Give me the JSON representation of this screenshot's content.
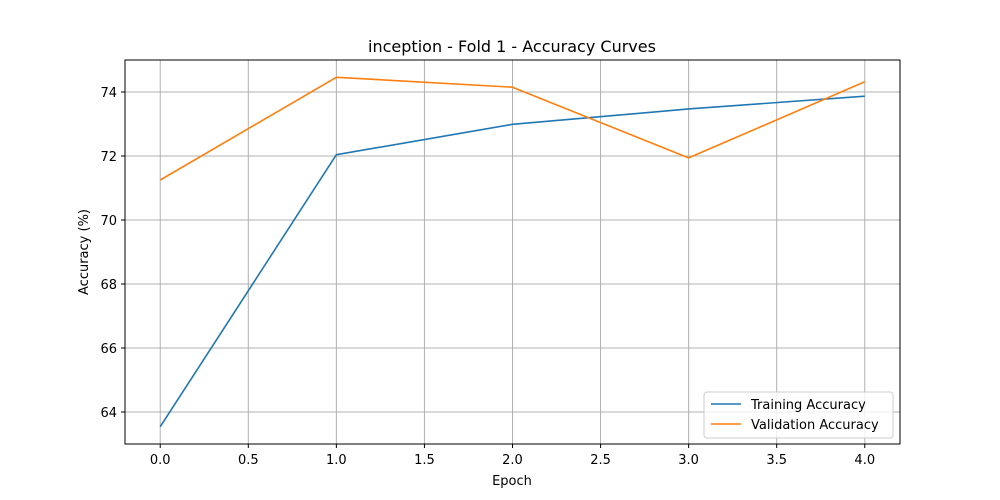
{
  "chart_data": {
    "type": "line",
    "title": "inception - Fold 1 - Accuracy Curves",
    "xlabel": "Epoch",
    "ylabel": "Accuracy (%)",
    "x": [
      0,
      1,
      2,
      3,
      4
    ],
    "xlim": [
      -0.2,
      4.2
    ],
    "ylim": [
      63.0,
      75.0
    ],
    "xticks": [
      0.0,
      0.5,
      1.0,
      1.5,
      2.0,
      2.5,
      3.0,
      3.5,
      4.0
    ],
    "xtick_labels": [
      "0.0",
      "0.5",
      "1.0",
      "1.5",
      "2.0",
      "2.5",
      "3.0",
      "3.5",
      "4.0"
    ],
    "yticks": [
      64,
      66,
      68,
      70,
      72,
      74
    ],
    "ytick_labels": [
      "64",
      "66",
      "68",
      "70",
      "72",
      "74"
    ],
    "grid": true,
    "legend_position": "bottom-right",
    "series": [
      {
        "name": "Training Accuracy",
        "color": "#1f77b4",
        "values": [
          63.54,
          72.04,
          72.99,
          73.47,
          73.87
        ]
      },
      {
        "name": "Validation Accuracy",
        "color": "#ff7f0e",
        "values": [
          71.25,
          74.46,
          74.15,
          71.94,
          74.32
        ]
      }
    ]
  }
}
